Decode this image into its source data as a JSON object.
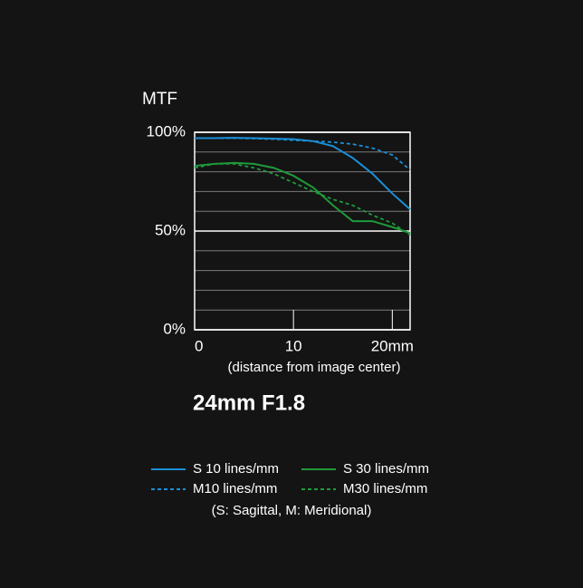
{
  "chart_data": {
    "type": "line",
    "title": "24mm F1.8",
    "y_label": "MTF",
    "x_label": "(distance from image center)",
    "note": "(S: Sagittal, M: Meridional)",
    "x": [
      0,
      2,
      4,
      6,
      8,
      10,
      12,
      14,
      16,
      18,
      20,
      21.8
    ],
    "series": [
      {
        "name": "S 10 lines/mm",
        "color": "#1a8fd6",
        "dashed": false,
        "values": [
          97,
          97,
          97.2,
          97,
          96.8,
          96.5,
          95.5,
          93,
          87,
          79,
          69,
          61
        ]
      },
      {
        "name": "M10 lines/mm",
        "color": "#1a8fd6",
        "dashed": true,
        "values": [
          97,
          97,
          97,
          96.8,
          96.5,
          96,
          95.5,
          95,
          94,
          92,
          88.5,
          81
        ]
      },
      {
        "name": "S 30 lines/mm",
        "color": "#1f9a3a",
        "dashed": false,
        "values": [
          83,
          84,
          84.5,
          84,
          82,
          78,
          72,
          63,
          55,
          55,
          52,
          49
        ]
      },
      {
        "name": "M30 lines/mm",
        "color": "#1f9a3a",
        "dashed": true,
        "values": [
          82,
          84,
          84,
          82,
          79,
          74.5,
          70,
          66,
          63,
          58,
          54,
          48
        ]
      }
    ],
    "xlim": [
      0,
      21.8
    ],
    "ylim": [
      0,
      100
    ],
    "xticks": [
      0,
      10,
      {
        "value": 20,
        "label": "20mm"
      }
    ],
    "yticks": [
      {
        "value": 0,
        "label": "0%"
      },
      {
        "value": 50,
        "label": "50%"
      },
      {
        "value": 100,
        "label": "100%"
      }
    ],
    "y_minor_ticks": [
      10,
      20,
      30,
      40,
      60,
      70,
      80,
      90
    ],
    "grid": true
  }
}
